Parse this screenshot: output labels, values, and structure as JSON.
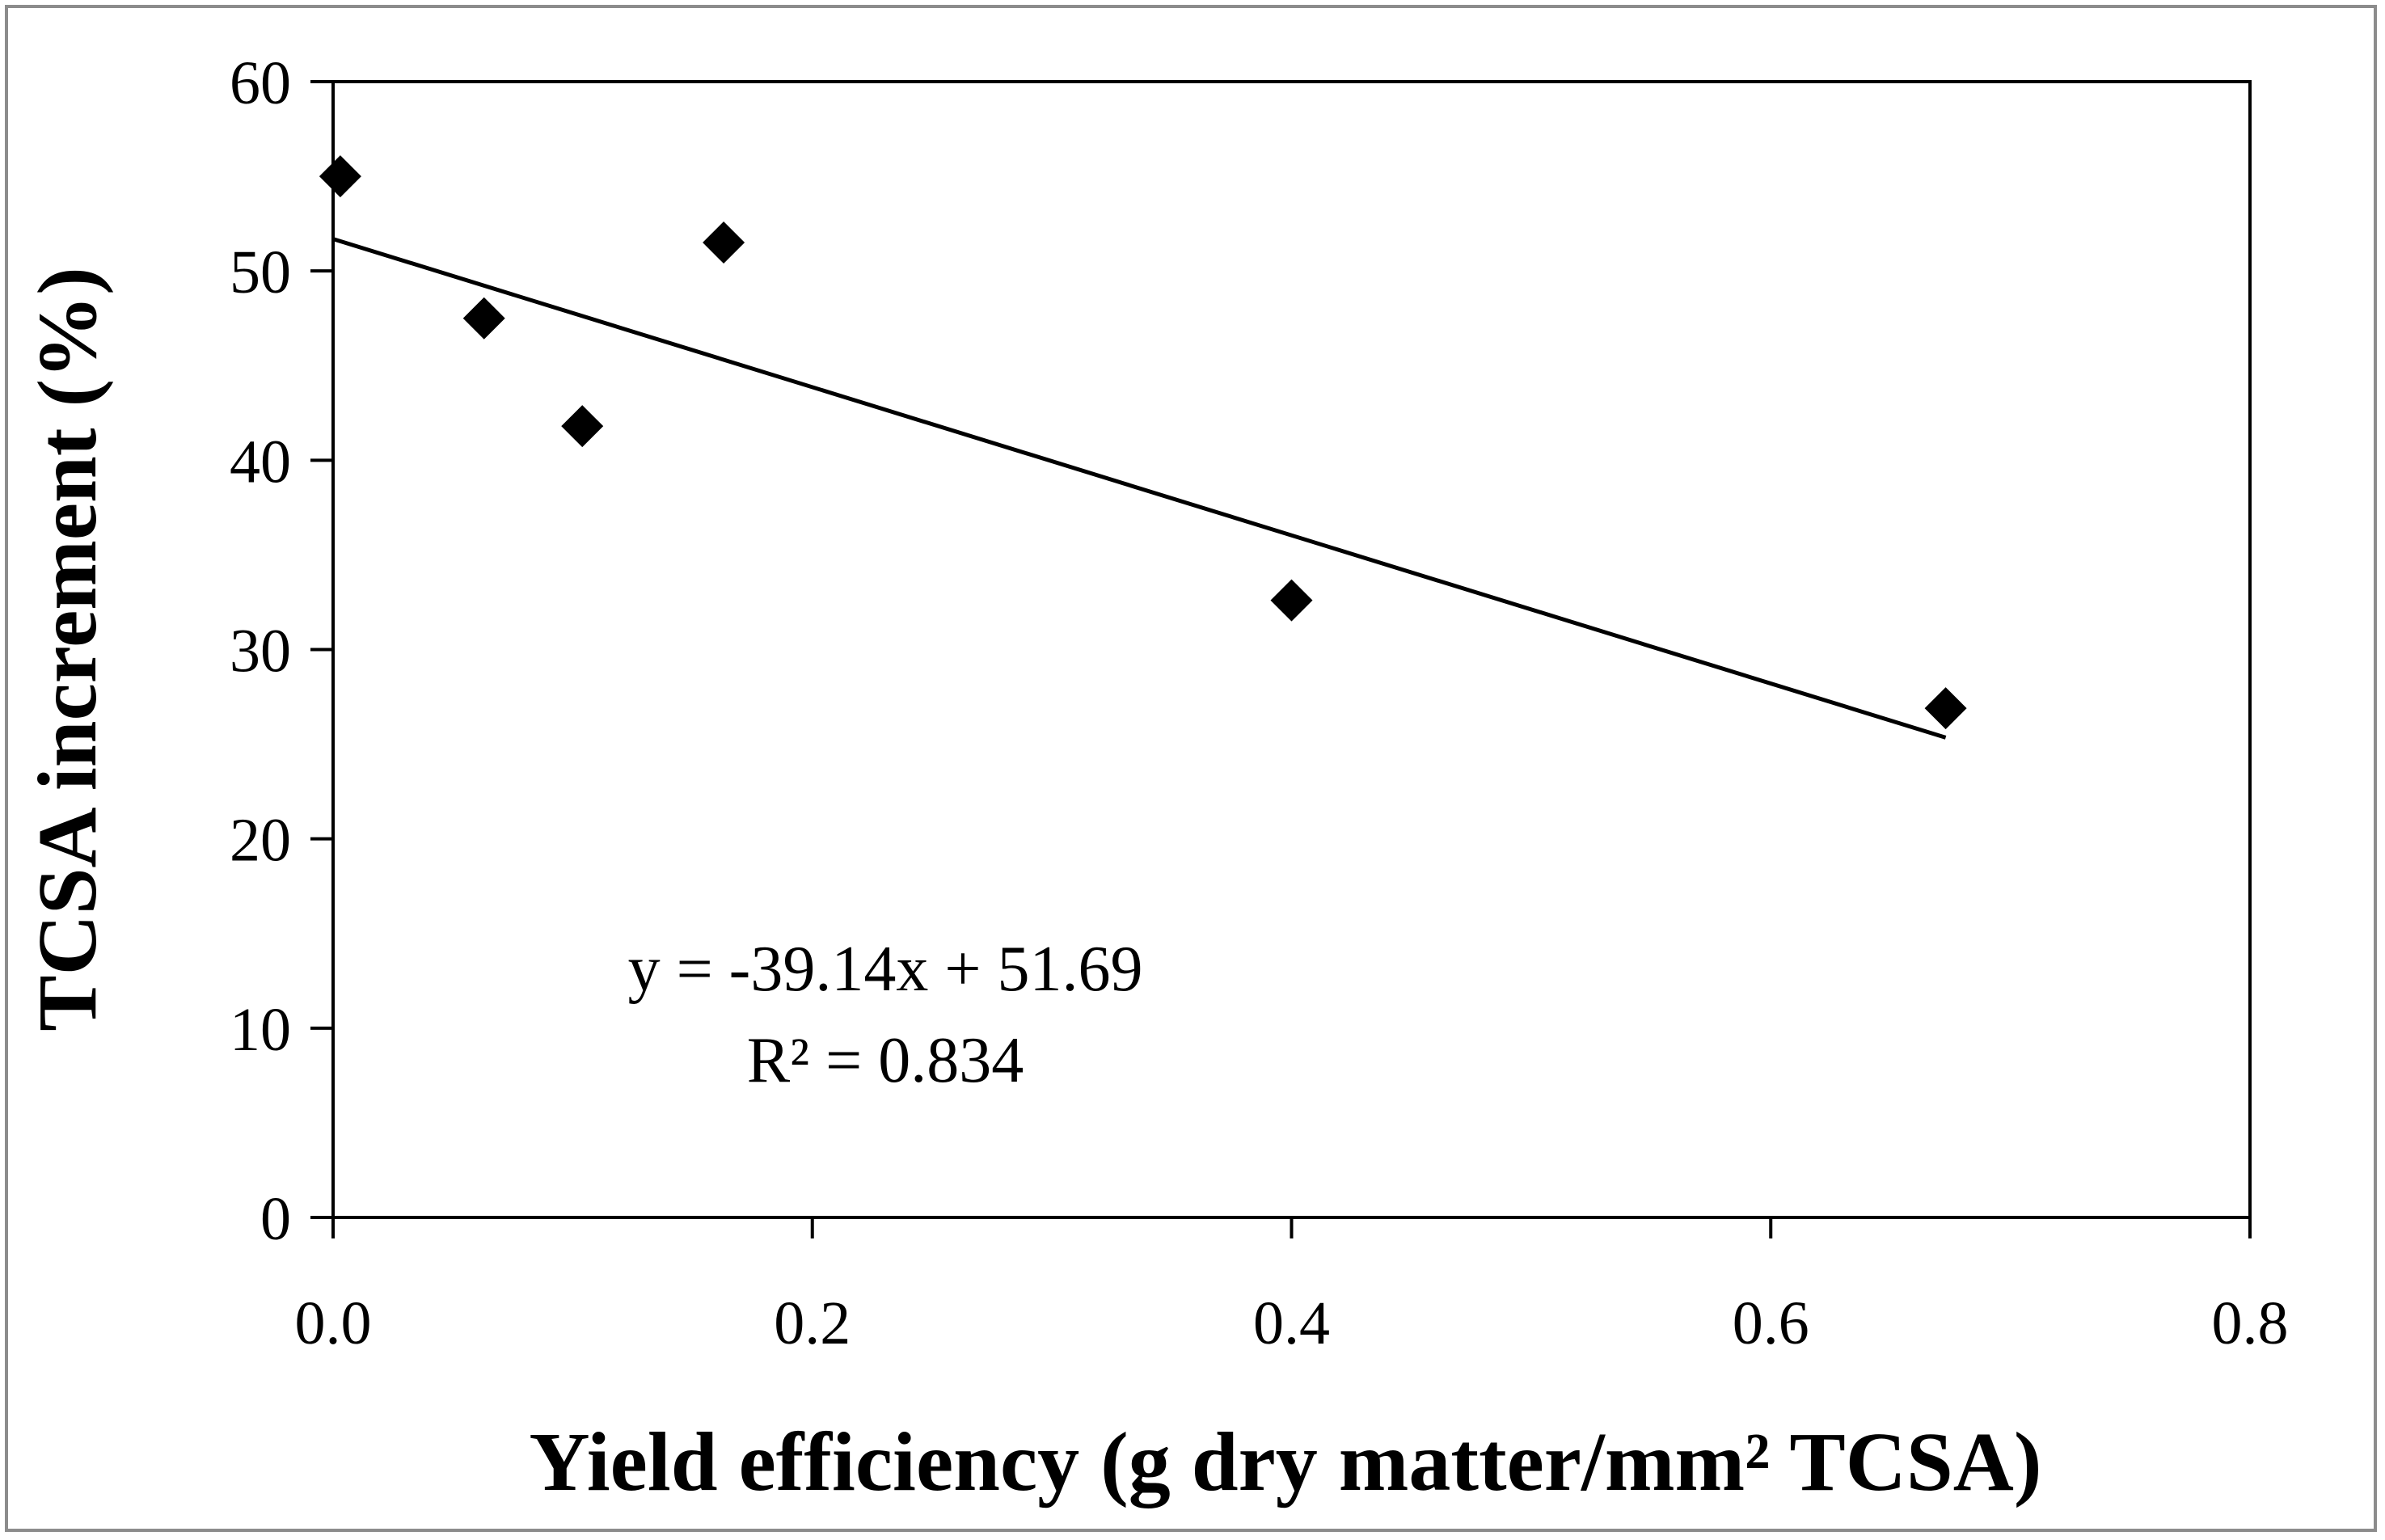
{
  "chart_data": {
    "type": "scatter",
    "title": "",
    "xlabel": "Yield efficiency (g dry matter/mm² TCSA)",
    "ylabel": "TCSA increment (%)",
    "xlim": [
      0,
      0.8
    ],
    "ylim": [
      0,
      60
    ],
    "x_ticks": [
      0.0,
      0.2,
      0.4,
      0.6,
      0.8
    ],
    "x_tick_labels": [
      "0.0",
      "0.2",
      "0.4",
      "0.6",
      "0.8"
    ],
    "y_ticks": [
      0,
      10,
      20,
      30,
      40,
      50,
      60
    ],
    "y_tick_labels": [
      "0",
      "10",
      "20",
      "30",
      "40",
      "50",
      "60"
    ],
    "grid": false,
    "legend": "none",
    "series": [
      {
        "name": "TCSA increment",
        "marker": "diamond",
        "color": "#000000",
        "x": [
          0.003,
          0.063,
          0.104,
          0.163,
          0.4,
          0.673
        ],
        "y": [
          55.0,
          47.5,
          41.8,
          51.5,
          32.6,
          26.9
        ]
      }
    ],
    "trendline": {
      "type": "linear",
      "slope": -39.14,
      "intercept": 51.69,
      "x_range": [
        0.0,
        0.673
      ],
      "equation_label": "y = -39.14x + 51.69",
      "r2_label": "R² = 0.834"
    }
  }
}
